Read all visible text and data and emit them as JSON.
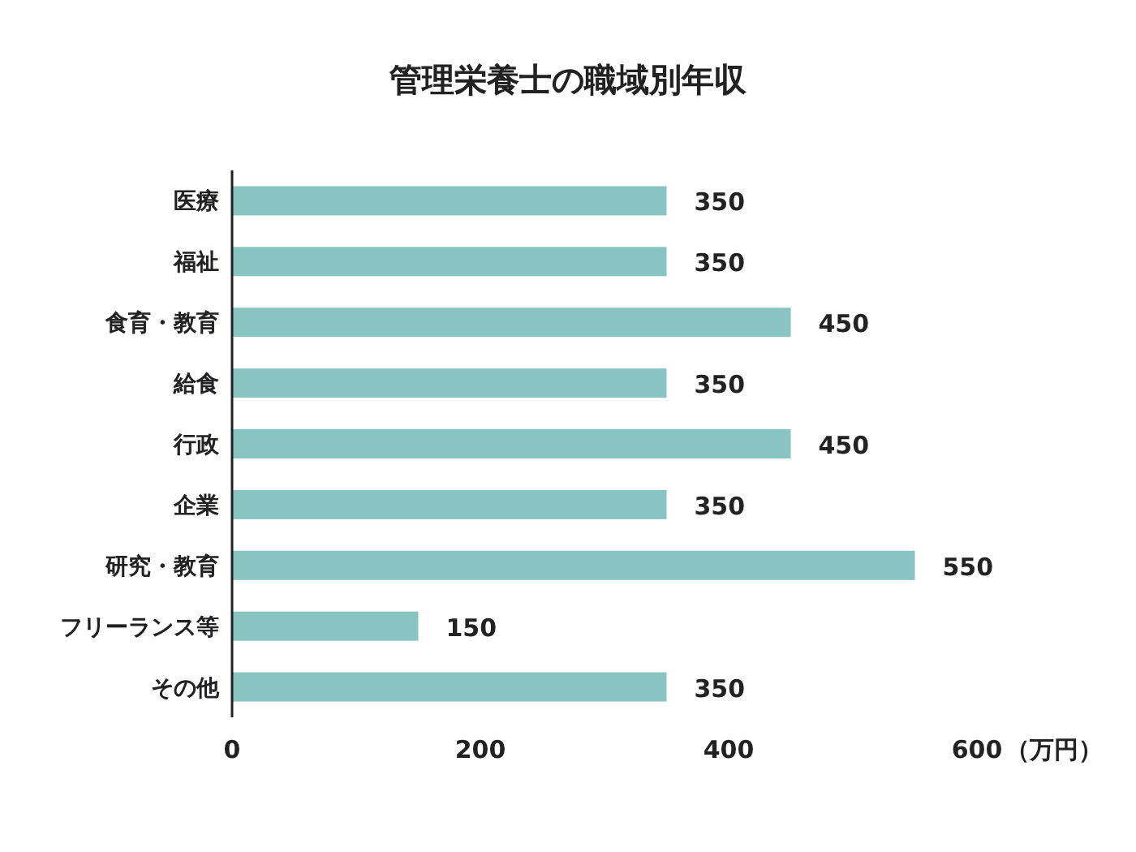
{
  "chart_data": {
    "type": "bar",
    "orientation": "horizontal",
    "title": "管理栄養士の職域別年収",
    "categories": [
      "医療",
      "福祉",
      "食育・教育",
      "給食",
      "行政",
      "企業",
      "研究・教育",
      "フリーランス等",
      "その他"
    ],
    "values": [
      350,
      350,
      450,
      350,
      450,
      350,
      550,
      150,
      350
    ],
    "color": "#88c4c2",
    "data_labels": true,
    "xlim": [
      0,
      600
    ],
    "xticks": [
      0,
      200,
      400,
      600
    ],
    "xlabel": "（万円）"
  }
}
